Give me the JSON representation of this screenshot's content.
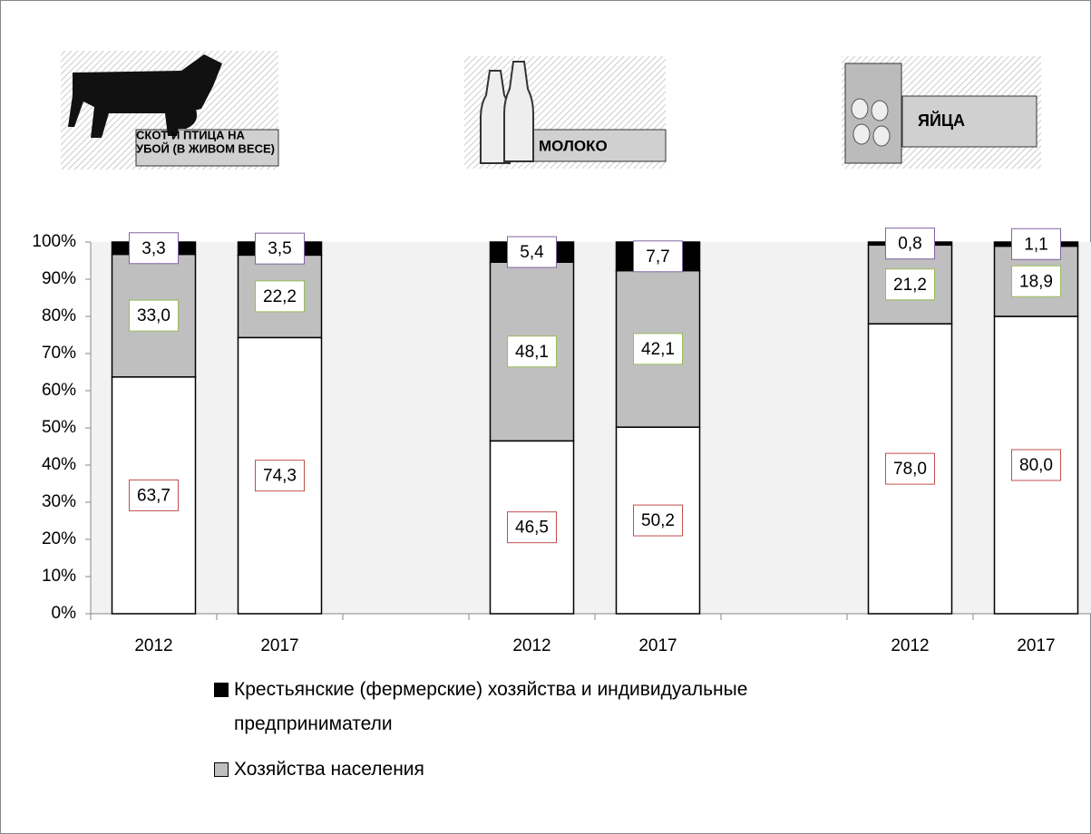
{
  "chart_data": {
    "type": "stacked_bar",
    "categories": [
      "2012",
      "2017",
      null,
      "2012",
      "2017",
      null,
      "2012",
      "2017"
    ],
    "series": [
      {
        "color": "#ffffff",
        "values": [
          63.7,
          74.3,
          null,
          46.5,
          50.2,
          null,
          78.0,
          80.0
        ],
        "value_labels": [
          "63,7",
          "74,3",
          null,
          "46,5",
          "50,2",
          null,
          "78,0",
          "80,0"
        ]
      },
      {
        "name": "Хозяйства населения",
        "color": "#bfbfbf",
        "values": [
          33.0,
          22.2,
          null,
          48.1,
          42.1,
          null,
          21.2,
          18.9
        ],
        "value_labels": [
          "33,0",
          "22,2",
          null,
          "48,1",
          "42,1",
          null,
          "21,2",
          "18,9"
        ]
      },
      {
        "name": "Крестьянские (фермерские) хозяйства и индивидуальные предприниматели",
        "color": "#000000",
        "values": [
          3.3,
          3.5,
          null,
          5.4,
          7.7,
          null,
          0.8,
          1.1
        ],
        "value_labels": [
          "3,3",
          "3,5",
          null,
          "5,4",
          "7,7",
          null,
          "0,8",
          "1,1"
        ]
      }
    ],
    "ylim": [
      0,
      100
    ],
    "yticks": [
      {
        "value": 0,
        "label": "0%"
      },
      {
        "value": 10,
        "label": "10%"
      },
      {
        "value": 20,
        "label": "20%"
      },
      {
        "value": 30,
        "label": "30%"
      },
      {
        "value": 40,
        "label": "40%"
      },
      {
        "value": 50,
        "label": "50%"
      },
      {
        "value": 60,
        "label": "60%"
      },
      {
        "value": 70,
        "label": "70%"
      },
      {
        "value": 80,
        "label": "80%"
      },
      {
        "value": 90,
        "label": "90%"
      },
      {
        "value": 100,
        "label": "100%"
      }
    ],
    "annotations": [
      {
        "lines": [
          "СКОТ  И ПТИЦА  НА",
          "УБОЙ (В ЖИВОМ ВЕСЕ)"
        ]
      },
      {
        "lines": [
          "МОЛОКО"
        ]
      },
      {
        "lines": [
          "ЯЙЦА"
        ]
      }
    ]
  }
}
